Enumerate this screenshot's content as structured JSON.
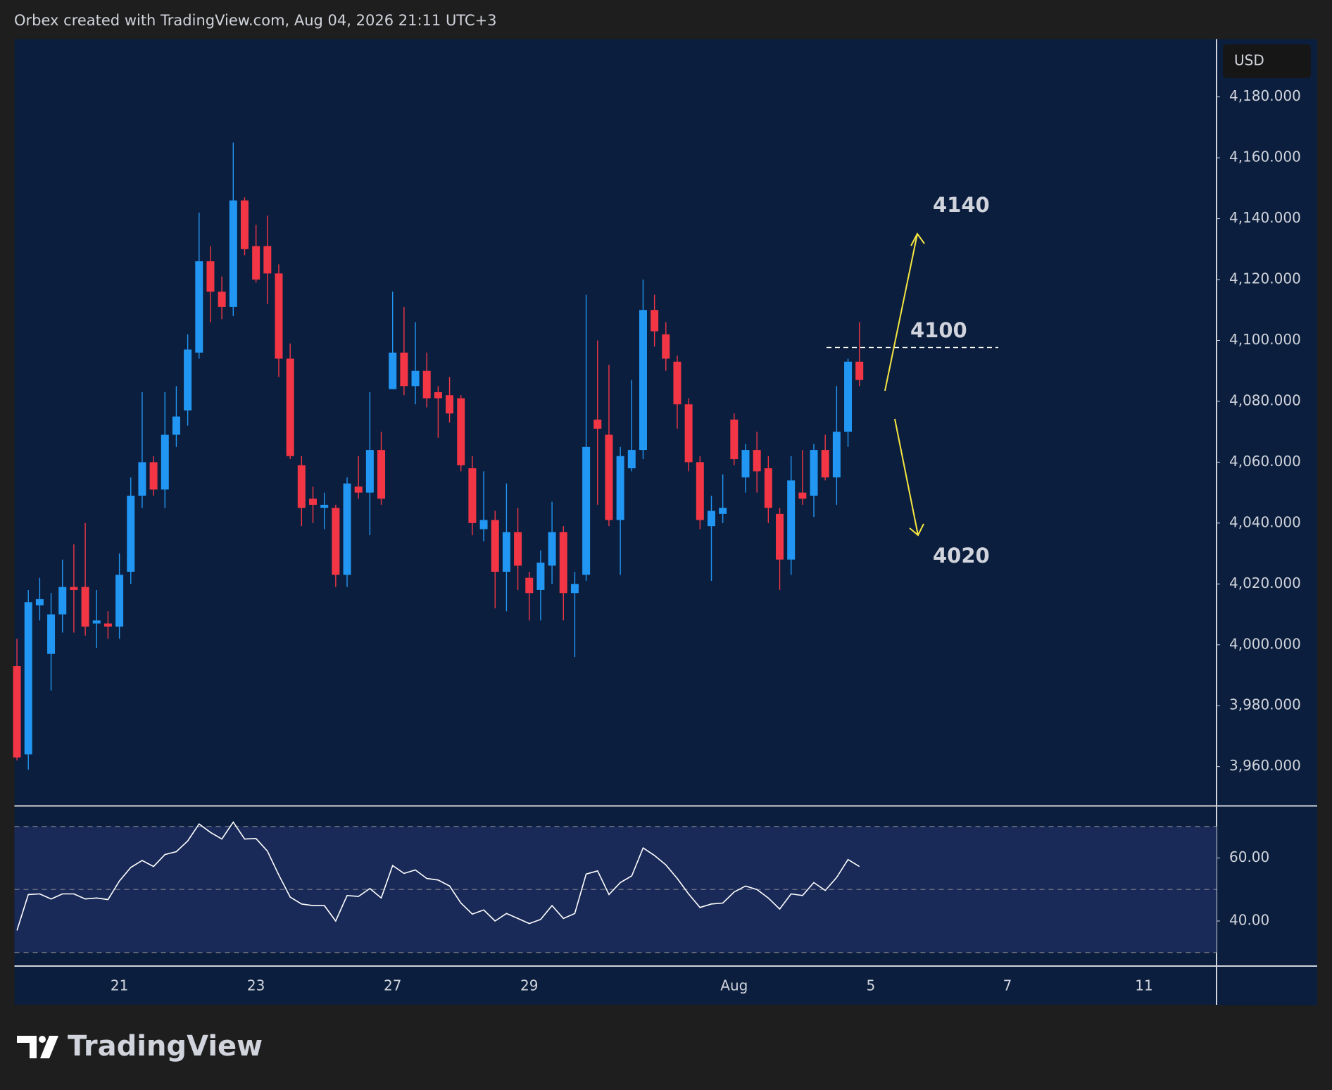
{
  "header": "Orbex created with TradingView.com, Aug 04, 2026 21:11 UTC+3",
  "footer": "TradingView",
  "annotations": [
    "4140",
    "4100",
    "4020"
  ],
  "chart_data": [
    {
      "type": "candlestick",
      "currency": "USD",
      "up_color": "#2196f3",
      "down_color": "#f23645",
      "open": [
        3993,
        3964,
        4013,
        3997,
        4010,
        4019,
        4019,
        4007,
        4007,
        4006,
        4024,
        4049,
        4060,
        4051,
        4069,
        4077,
        4096,
        4126,
        4116,
        4111,
        4146,
        4131,
        4131,
        4122,
        4094,
        4059,
        4048,
        4045,
        4045,
        4023,
        4052,
        4050,
        4064,
        4084,
        4096,
        4085,
        4090,
        4083,
        4082,
        4081,
        4058,
        4038,
        4041,
        4024,
        4037,
        4022,
        4018,
        4026,
        4037,
        4017,
        4023,
        4074,
        4069,
        4041,
        4058,
        4064,
        4110,
        4102,
        4093,
        4079,
        4060,
        4039,
        4043,
        4074,
        4055,
        4064,
        4058,
        4043,
        4028,
        4050,
        4049,
        4064,
        4055,
        4070,
        4093
      ],
      "high": [
        4002,
        4018,
        4022,
        4017,
        4028,
        4033,
        4040,
        4018,
        4011,
        4030,
        4055,
        4083,
        4062,
        4083,
        4085,
        4102,
        4142,
        4131,
        4121,
        4165,
        4147,
        4138,
        4141,
        4125,
        4099,
        4062,
        4052,
        4050,
        4046,
        4055,
        4062,
        4083,
        4070,
        4116,
        4111,
        4106,
        4096,
        4085,
        4088,
        4082,
        4062,
        4057,
        4044,
        4053,
        4045,
        4024,
        4031,
        4047,
        4039,
        4024,
        4115,
        4100,
        4092,
        4065,
        4087,
        4120,
        4115,
        4106,
        4095,
        4081,
        4062,
        4049,
        4056,
        4076,
        4066,
        4070,
        4062,
        4045,
        4062,
        4064,
        4066,
        4069,
        4085,
        4094,
        4106
      ],
      "low": [
        3962,
        3959,
        4008,
        3985,
        4004,
        4004,
        4003,
        3999,
        4002,
        4002,
        4020,
        4045,
        4049,
        4045,
        4065,
        4072,
        4094,
        4106,
        4107,
        4108,
        4128,
        4119,
        4112,
        4088,
        4061,
        4039,
        4040,
        4038,
        4019,
        4019,
        4048,
        4036,
        4046,
        4084,
        4082,
        4079,
        4078,
        4068,
        4073,
        4057,
        4036,
        4034,
        4012,
        4011,
        4018,
        4008,
        4008,
        4020,
        4008,
        3996,
        4021,
        4046,
        4039,
        4023,
        4057,
        4061,
        4098,
        4090,
        4071,
        4057,
        4038,
        4021,
        4040,
        4059,
        4050,
        4050,
        4040,
        4018,
        4023,
        4046,
        4042,
        4054,
        4046,
        4065,
        4085
      ],
      "close": [
        3963,
        4014,
        4015,
        4010,
        4019,
        4018,
        4006,
        4008,
        4006,
        4023,
        4049,
        4060,
        4051,
        4069,
        4075,
        4097,
        4126,
        4116,
        4111,
        4146,
        4130,
        4120,
        4122,
        4094,
        4062,
        4045,
        4046,
        4046,
        4023,
        4053,
        4050,
        4064,
        4048,
        4096,
        4085,
        4090,
        4081,
        4081,
        4076,
        4059,
        4040,
        4041,
        4024,
        4037,
        4026,
        4017,
        4027,
        4037,
        4017,
        4020,
        4065,
        4071,
        4041,
        4062,
        4064,
        4110,
        4103,
        4094,
        4079,
        4060,
        4041,
        4044,
        4045,
        4061,
        4064,
        4057,
        4045,
        4028,
        4054,
        4048,
        4064,
        4055,
        4070,
        4093,
        4087
      ],
      "xlim": [
        -0.22,
        105.37
      ],
      "ylim": [
        3947.2,
        4199
      ],
      "yticks": [
        {
          "value": 4180,
          "label": "4,180.000"
        },
        {
          "value": 4160,
          "label": "4,160.000"
        },
        {
          "value": 4140,
          "label": "4,140.000"
        },
        {
          "value": 4120,
          "label": "4,120.000"
        },
        {
          "value": 4100,
          "label": "4,100.000"
        },
        {
          "value": 4080,
          "label": "4,080.000"
        },
        {
          "value": 4060,
          "label": "4,060.000"
        },
        {
          "value": 4040,
          "label": "4,040.000"
        },
        {
          "value": 4020,
          "label": "4,020.000"
        },
        {
          "value": 4000,
          "label": "4,000.000"
        },
        {
          "value": 3980,
          "label": "3,980.000"
        },
        {
          "value": 3960,
          "label": "3,960.000"
        }
      ]
    },
    {
      "type": "line",
      "color": "#ffffff",
      "values": [
        37,
        48.4,
        48.6,
        47,
        48.6,
        48.6,
        47,
        47.3,
        46.8,
        52.7,
        57,
        59.2,
        57.3,
        61.1,
        62,
        65.4,
        70.8,
        68.1,
        66,
        71.4,
        66,
        66.2,
        62.2,
        54.6,
        47.6,
        45.4,
        44.9,
        44.9,
        40,
        48.1,
        47.8,
        50.3,
        47.3,
        57.6,
        55.1,
        56.2,
        53.5,
        53,
        51.1,
        45.7,
        42.2,
        43.5,
        40,
        42.4,
        40.8,
        39.2,
        40.5,
        44.9,
        40.8,
        42.4,
        54.9,
        55.9,
        48.4,
        52.2,
        54.3,
        63.2,
        60.8,
        57.8,
        53.5,
        48.6,
        44.3,
        45.4,
        45.7,
        49.2,
        51.1,
        50,
        47.3,
        43.8,
        48.6,
        48.1,
        52.2,
        49.7,
        53.8,
        59.5,
        57.3
      ],
      "levels": [
        70,
        50,
        30
      ],
      "xlim": [
        -0.22,
        105.37
      ],
      "ylim": [
        25.7,
        76.2
      ],
      "yticks": [
        {
          "value": 60,
          "label": "60.00"
        },
        {
          "value": 40,
          "label": "40.00"
        }
      ],
      "xticks": [
        {
          "value": 9,
          "label": "21"
        },
        {
          "value": 21,
          "label": "23"
        },
        {
          "value": 33,
          "label": "27"
        },
        {
          "value": 45,
          "label": "29"
        },
        {
          "value": 63,
          "label": "Aug"
        },
        {
          "value": 75,
          "label": "5"
        },
        {
          "value": 87,
          "label": "7"
        },
        {
          "value": 99,
          "label": "11"
        }
      ]
    }
  ]
}
